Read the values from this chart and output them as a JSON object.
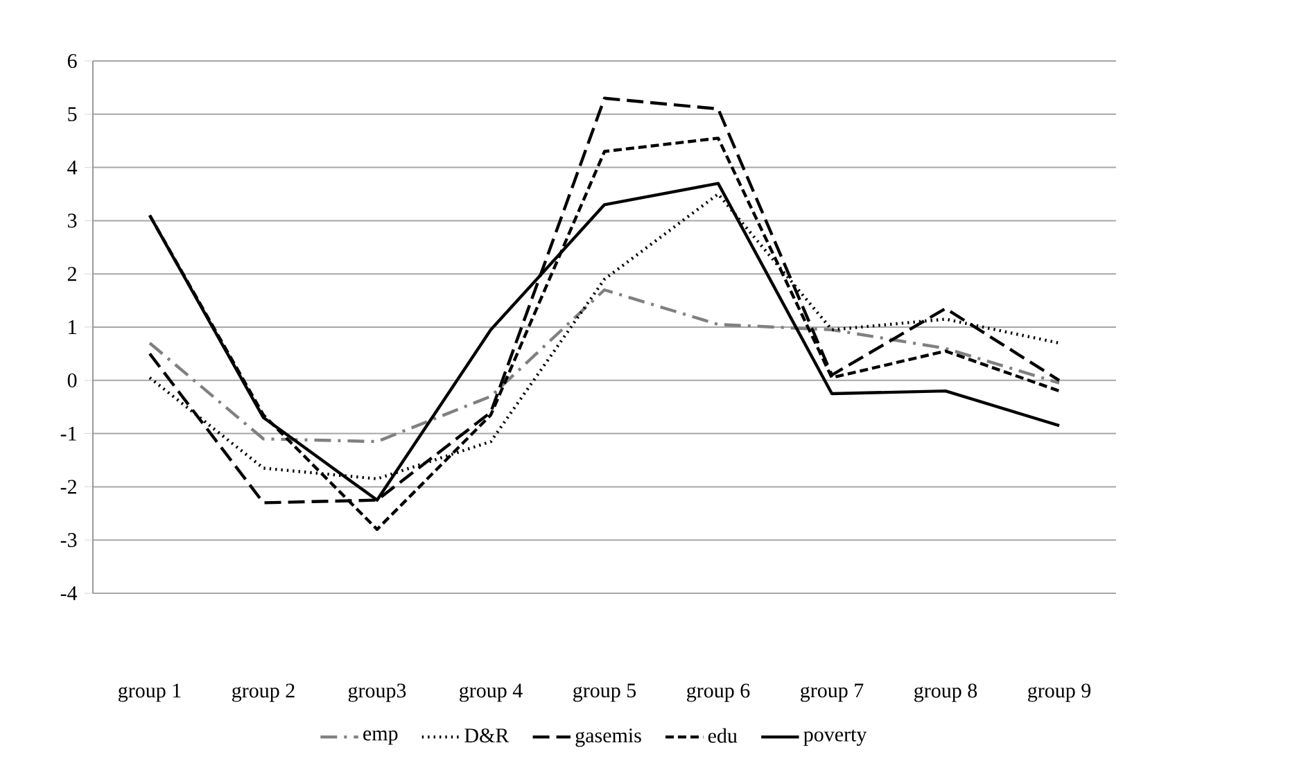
{
  "chart_data": {
    "type": "line",
    "categories": [
      "group 1",
      "group 2",
      "group3",
      "group 4",
      "group 5",
      "group 6",
      "group 7",
      "group 8",
      "group 9"
    ],
    "series": [
      {
        "name": "emp",
        "color": "#808080",
        "line_style": "dashdot",
        "values": [
          0.7,
          -1.1,
          -1.15,
          -0.3,
          1.7,
          1.05,
          0.95,
          0.6,
          -0.05
        ]
      },
      {
        "name": "D&R",
        "color": "#000000",
        "line_style": "dotted",
        "values": [
          0.05,
          -1.65,
          -1.85,
          -1.15,
          1.9,
          3.5,
          0.95,
          1.15,
          0.7
        ]
      },
      {
        "name": "gasemis",
        "color": "#000000",
        "line_style": "longdashed",
        "values": [
          0.5,
          -2.3,
          -2.25,
          -0.6,
          5.3,
          5.1,
          0.1,
          1.35,
          0.0
        ]
      },
      {
        "name": "edu",
        "color": "#000000",
        "line_style": "dashed",
        "values": [
          3.1,
          -0.65,
          -2.8,
          -0.65,
          4.3,
          4.55,
          0.05,
          0.55,
          -0.2
        ]
      },
      {
        "name": "poverty",
        "color": "#000000",
        "line_style": "solid",
        "values": [
          3.1,
          -0.7,
          -2.25,
          0.95,
          3.3,
          3.7,
          -0.25,
          -0.2,
          -0.85
        ]
      }
    ],
    "ylim": [
      -4,
      6
    ],
    "yticks": [
      -4,
      -3,
      -2,
      -1,
      0,
      1,
      2,
      3,
      4,
      5,
      6
    ],
    "grid": "y",
    "legend": "bottom",
    "marker": "none"
  }
}
